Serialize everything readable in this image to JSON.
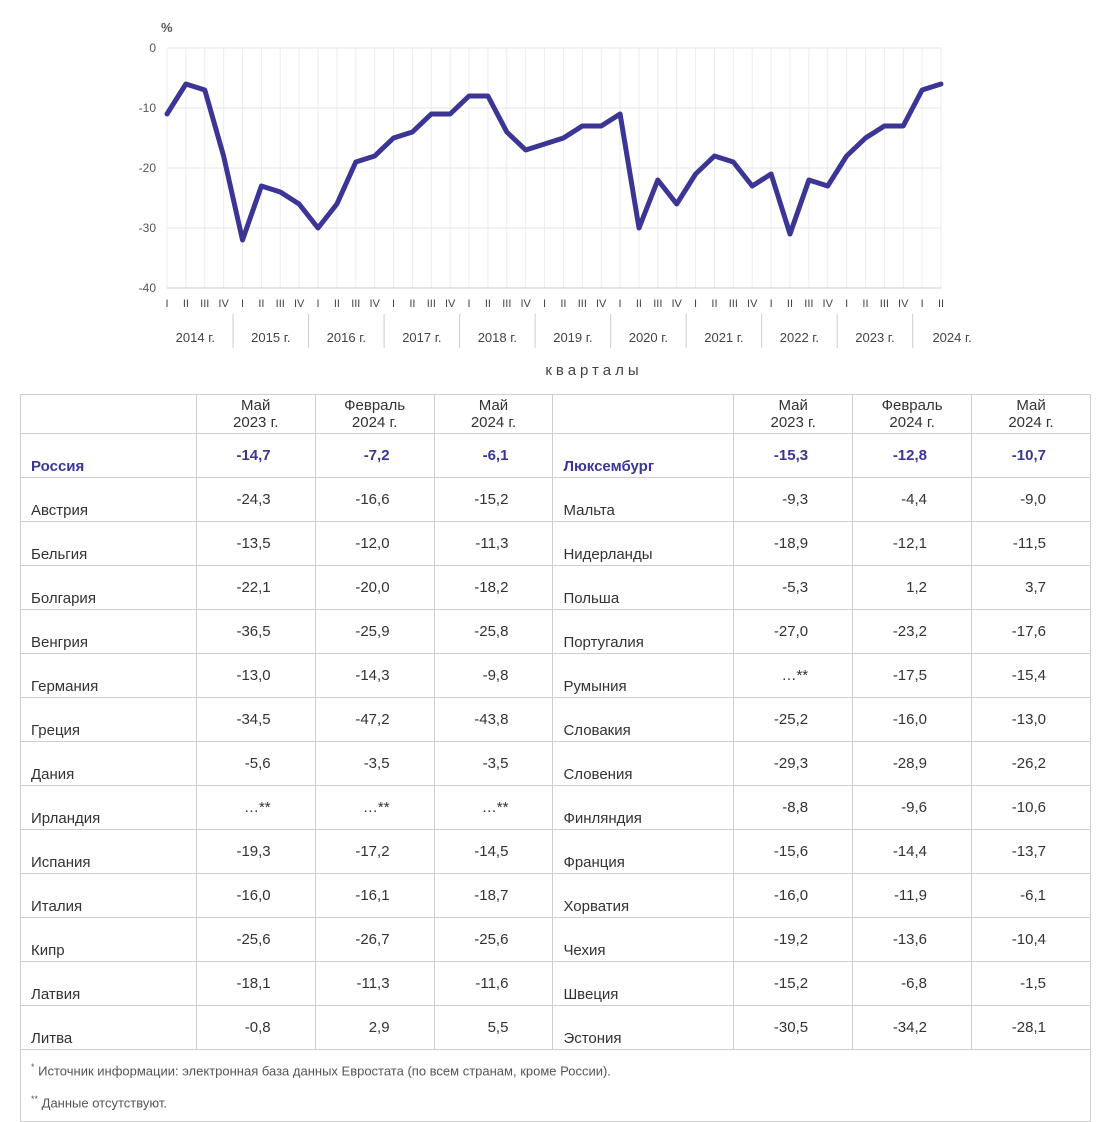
{
  "chart_data": {
    "type": "line",
    "unit_label": "%",
    "xlabel": "кварталы",
    "ylim": [
      -40,
      0
    ],
    "yticks": [
      "0",
      "-10",
      "-20",
      "-30",
      "-40"
    ],
    "quarter_labels": [
      "I",
      "II",
      "III",
      "IV"
    ],
    "years": [
      "2014 г.",
      "2015 г.",
      "2016 г.",
      "2017 г.",
      "2018 г.",
      "2019 г.",
      "2020 г.",
      "2021 г.",
      "2022 г.",
      "2023 г.",
      "2024 г."
    ],
    "color": "#3b3696",
    "grid": true,
    "series": [
      {
        "values": [
          -11,
          -6,
          -7,
          -18,
          -32,
          -23,
          -24,
          -26,
          -30,
          -26,
          -19,
          -18,
          -15,
          -14,
          -11,
          -11,
          -8,
          -8,
          -14,
          -17,
          -16,
          -15,
          -13,
          -13,
          -11,
          -30,
          -22,
          -26,
          -21,
          -18,
          -19,
          -23,
          -21,
          -31,
          -22,
          -23,
          -18,
          -15,
          -13,
          -13,
          -7,
          -6
        ]
      }
    ]
  },
  "table": {
    "headers": {
      "col1": "Май\n2023 г.",
      "col2": "Февраль\n2024 г.",
      "col3": "Май\n2024 г."
    },
    "rows": [
      {
        "left": [
          "Россия",
          "-14,7",
          "-7,2",
          "-6,1"
        ],
        "right": [
          "Люксембург",
          "-15,3",
          "-12,8",
          "-10,7"
        ]
      },
      {
        "left": [
          "Австрия",
          "-24,3",
          "-16,6",
          "-15,2"
        ],
        "right": [
          "Мальта",
          "-9,3",
          "-4,4",
          "-9,0"
        ]
      },
      {
        "left": [
          "Бельгия",
          "-13,5",
          "-12,0",
          "-11,3"
        ],
        "right": [
          "Нидерланды",
          "-18,9",
          "-12,1",
          "-11,5"
        ]
      },
      {
        "left": [
          "Болгария",
          "-22,1",
          "-20,0",
          "-18,2"
        ],
        "right": [
          "Польша",
          "-5,3",
          "1,2",
          "3,7"
        ]
      },
      {
        "left": [
          "Венгрия",
          "-36,5",
          "-25,9",
          "-25,8"
        ],
        "right": [
          "Португалия",
          "-27,0",
          "-23,2",
          "-17,6"
        ]
      },
      {
        "left": [
          "Германия",
          "-13,0",
          "-14,3",
          "-9,8"
        ],
        "right": [
          "Румыния",
          "…**",
          "-17,5",
          "-15,4"
        ]
      },
      {
        "left": [
          "Греция",
          "-34,5",
          "-47,2",
          "-43,8"
        ],
        "right": [
          "Словакия",
          "-25,2",
          "-16,0",
          "-13,0"
        ]
      },
      {
        "left": [
          "Дания",
          "-5,6",
          "-3,5",
          "-3,5"
        ],
        "right": [
          "Словения",
          "-29,3",
          "-28,9",
          "-26,2"
        ]
      },
      {
        "left": [
          "Ирландия",
          "…**",
          "…**",
          "…**"
        ],
        "right": [
          "Финляндия",
          "-8,8",
          "-9,6",
          "-10,6"
        ]
      },
      {
        "left": [
          "Испания",
          "-19,3",
          "-17,2",
          "-14,5"
        ],
        "right": [
          "Франция",
          "-15,6",
          "-14,4",
          "-13,7"
        ]
      },
      {
        "left": [
          "Италия",
          "-16,0",
          "-16,1",
          "-18,7"
        ],
        "right": [
          "Хорватия",
          "-16,0",
          "-11,9",
          "-6,1"
        ]
      },
      {
        "left": [
          "Кипр",
          "-25,6",
          "-26,7",
          "-25,6"
        ],
        "right": [
          "Чехия",
          "-19,2",
          "-13,6",
          "-10,4"
        ]
      },
      {
        "left": [
          "Латвия",
          "-18,1",
          "-11,3",
          "-11,6"
        ],
        "right": [
          "Швеция",
          "-15,2",
          "-6,8",
          "-1,5"
        ]
      },
      {
        "left": [
          "Литва",
          "-0,8",
          "2,9",
          "5,5"
        ],
        "right": [
          "Эстония",
          "-30,5",
          "-34,2",
          "-28,1"
        ]
      }
    ],
    "footnotes": {
      "note1_mark": "*",
      "note1": "Источник информации: электронная база данных Евростата (по всем странам, кроме России).",
      "note2_mark": "**",
      "note2": "Данные отсутствуют."
    }
  }
}
